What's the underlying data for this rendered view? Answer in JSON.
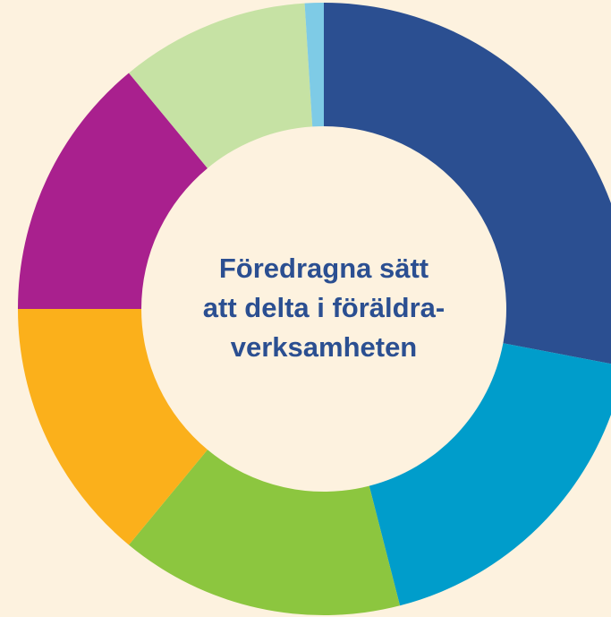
{
  "chart_data": {
    "type": "donut",
    "title": [
      "Föredragna sätt",
      "att delta i föräldra-",
      "verksamheten"
    ],
    "categories": [
      null,
      null,
      null,
      null,
      null,
      null,
      null
    ],
    "values": [
      28,
      18,
      15,
      14,
      14,
      10,
      1
    ],
    "colors": [
      "#2b4f91",
      "#009dcb",
      "#8cc63f",
      "#fbb01b",
      "#a9208e",
      "#c6e2a4",
      "#7ecbe6"
    ],
    "background": "#fdf2df"
  }
}
